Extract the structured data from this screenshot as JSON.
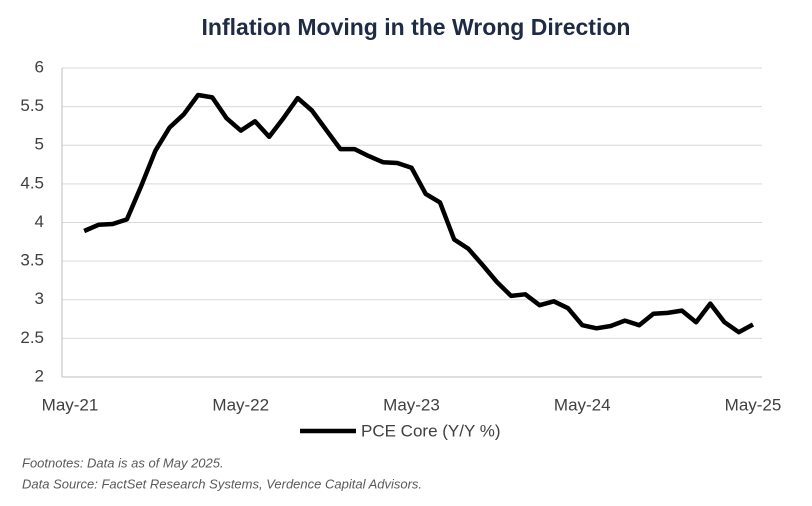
{
  "chart_data": {
    "type": "line",
    "title": "Inflation Moving in the Wrong Direction",
    "categories": [
      "May-21",
      null,
      null,
      null,
      null,
      null,
      null,
      null,
      null,
      null,
      null,
      null,
      "May-22",
      null,
      null,
      null,
      null,
      null,
      null,
      null,
      null,
      null,
      null,
      null,
      "May-23",
      null,
      null,
      null,
      null,
      null,
      null,
      null,
      null,
      null,
      null,
      null,
      "May-24",
      null,
      null,
      null,
      null,
      null,
      null,
      null,
      null,
      null,
      null,
      null,
      "May-25"
    ],
    "series": [
      {
        "name": "PCE Core (Y/Y %)",
        "color": "#000000",
        "values": [
          null,
          3.89,
          3.97,
          3.98,
          4.04,
          4.47,
          4.93,
          5.23,
          5.4,
          5.65,
          5.62,
          5.35,
          5.19,
          5.31,
          5.11,
          5.35,
          5.61,
          5.45,
          5.2,
          4.95,
          4.95,
          4.86,
          4.78,
          4.77,
          4.71,
          4.37,
          4.26,
          3.78,
          3.66,
          3.45,
          3.23,
          3.05,
          3.07,
          2.93,
          2.98,
          2.89,
          2.67,
          2.63,
          2.66,
          2.73,
          2.67,
          2.82,
          2.83,
          2.86,
          2.71,
          2.95,
          2.71,
          2.58,
          2.68
        ]
      }
    ],
    "ylim": [
      2,
      6
    ],
    "yticks": [
      2,
      2.5,
      3,
      3.5,
      4,
      4.5,
      5,
      5.5,
      6
    ],
    "grid": true,
    "legend": "bottom",
    "notes": [
      "Footnotes: Data is as of May 2025.",
      "Data Source: FactSet Research Systems, Verdence Capital Advisors."
    ]
  }
}
